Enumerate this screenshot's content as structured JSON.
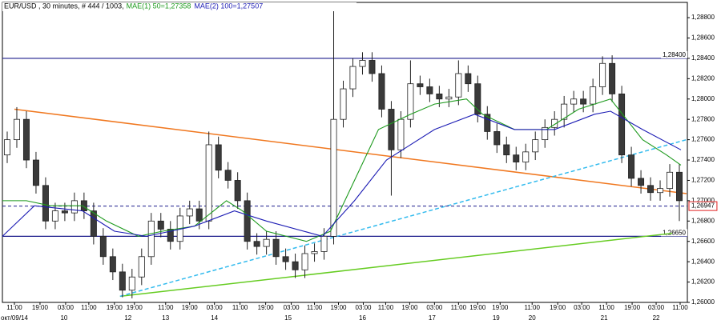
{
  "chart_data": {
    "type": "candlestick",
    "title": "EUR/USD , 30 minutes, # 444 / 1003,",
    "x": [
      1.5,
      4.5,
      7.5,
      10.5,
      13.5,
      16.5,
      19.5,
      22.5,
      25.5,
      28.5,
      31.5,
      34.5,
      37.5,
      40.5,
      43.5,
      46.5,
      49.5,
      52.5,
      55.5,
      58.5,
      61.5,
      64.5,
      67.5,
      70.5,
      73.5,
      76.5,
      79.5,
      82.5,
      85.5,
      88.5,
      91.5,
      94.5,
      97.5,
      100.5,
      103.5,
      106.5,
      109.5,
      112.5,
      115.5,
      118.5,
      121.5,
      124.5,
      127.5,
      130.5,
      133.5,
      136.5,
      139.5,
      142.5,
      145.5,
      148.5,
      151.5,
      154.5,
      157.5,
      160.5,
      163.5,
      166.5,
      169.5,
      172.5,
      175.5,
      178.5,
      181.5,
      184.5,
      187.5,
      190.5,
      193.5,
      196.5,
      199.5,
      202.5,
      205.5,
      208.5,
      211.5
    ],
    "open": [
      1.2745,
      1.276,
      1.278,
      1.274,
      1.2715,
      1.268,
      1.269,
      1.2688,
      1.27,
      1.269,
      1.2665,
      1.2645,
      1.263,
      1.2612,
      1.2625,
      1.2645,
      1.268,
      1.2672,
      1.266,
      1.2685,
      1.2692,
      1.268,
      1.2755,
      1.273,
      1.272,
      1.27,
      1.266,
      1.2655,
      1.2662,
      1.2645,
      1.264,
      1.2632,
      1.2648,
      1.265,
      1.2665,
      1.278,
      1.281,
      1.2832,
      1.2838,
      1.2825,
      1.279,
      1.275,
      1.278,
      1.2815,
      1.2812,
      1.2805,
      1.28,
      1.2802,
      1.2825,
      1.2815,
      1.2785,
      1.2768,
      1.2755,
      1.2745,
      1.2738,
      1.2748,
      1.276,
      1.2772,
      1.278,
      1.2795,
      1.28,
      1.2795,
      1.2812,
      1.2835,
      1.2805,
      1.2745,
      1.2722,
      1.2715,
      1.2708,
      1.2712,
      1.2728
    ],
    "high": [
      1.2768,
      1.2792,
      1.2788,
      1.2748,
      1.2723,
      1.2698,
      1.2698,
      1.2708,
      1.2708,
      1.2698,
      1.2673,
      1.2653,
      1.2638,
      1.2633,
      1.2653,
      1.2688,
      1.2688,
      1.268,
      1.2693,
      1.27,
      1.27,
      1.2768,
      1.2763,
      1.2738,
      1.2728,
      1.2708,
      1.2668,
      1.267,
      1.267,
      1.2653,
      1.2648,
      1.2656,
      1.2658,
      1.2673,
      1.2888,
      1.2818,
      1.284,
      1.2846,
      1.2846,
      1.2833,
      1.2798,
      1.2788,
      1.2838,
      1.2823,
      1.282,
      1.2813,
      1.281,
      1.2838,
      1.2833,
      1.2823,
      1.2793,
      1.2776,
      1.2763,
      1.2753,
      1.2756,
      1.2768,
      1.278,
      1.2788,
      1.2803,
      1.2808,
      1.2808,
      1.282,
      1.2842,
      1.2843,
      1.2813,
      1.2753,
      1.273,
      1.2723,
      1.272,
      1.2736,
      1.2736
    ],
    "low": [
      1.2737,
      1.2752,
      1.2732,
      1.2707,
      1.2672,
      1.2672,
      1.268,
      1.268,
      1.2682,
      1.2657,
      1.2637,
      1.2622,
      1.2605,
      1.2604,
      1.2617,
      1.2637,
      1.2664,
      1.2652,
      1.2652,
      1.2677,
      1.2672,
      1.2672,
      1.2722,
      1.2712,
      1.2692,
      1.2652,
      1.2647,
      1.2647,
      1.2637,
      1.2632,
      1.2624,
      1.2624,
      1.264,
      1.2642,
      1.2657,
      1.2772,
      1.2802,
      1.2824,
      1.2817,
      1.2782,
      1.2705,
      1.2742,
      1.2772,
      1.2804,
      1.2797,
      1.2792,
      1.2792,
      1.2794,
      1.2807,
      1.2777,
      1.276,
      1.2747,
      1.2737,
      1.273,
      1.273,
      1.274,
      1.2752,
      1.2764,
      1.2772,
      1.2787,
      1.2787,
      1.2787,
      1.2804,
      1.2797,
      1.2737,
      1.2714,
      1.2707,
      1.27,
      1.27,
      1.2704,
      1.268
    ],
    "close": [
      1.276,
      1.278,
      1.274,
      1.2715,
      1.268,
      1.269,
      1.2688,
      1.27,
      1.269,
      1.2665,
      1.2645,
      1.263,
      1.2612,
      1.2625,
      1.2645,
      1.268,
      1.2672,
      1.266,
      1.2685,
      1.2692,
      1.268,
      1.2755,
      1.273,
      1.272,
      1.27,
      1.266,
      1.2655,
      1.2662,
      1.2645,
      1.264,
      1.2632,
      1.2648,
      1.265,
      1.2665,
      1.278,
      1.281,
      1.2832,
      1.2838,
      1.2825,
      1.279,
      1.275,
      1.278,
      1.2815,
      1.2812,
      1.2805,
      1.28,
      1.2802,
      1.2825,
      1.2815,
      1.2785,
      1.2768,
      1.2755,
      1.2745,
      1.2738,
      1.2748,
      1.276,
      1.2772,
      1.278,
      1.2795,
      1.28,
      1.2795,
      1.2812,
      1.2835,
      1.2805,
      1.2745,
      1.2722,
      1.2715,
      1.2708,
      1.2712,
      1.2728,
      1.27
    ],
    "series": [
      {
        "name": "MAE(1) 50=1,27358",
        "color": "#1e9a1e",
        "x": [
          0,
          7.5,
          15,
          25,
          32.5,
          42.5,
          50,
          60,
          70,
          75,
          82.5,
          95,
          102.5,
          110,
          117.5,
          127.5,
          135,
          145,
          150,
          160,
          170,
          180,
          190,
          200,
          207.5,
          212
        ],
        "values": [
          1.27,
          1.27,
          1.2695,
          1.2695,
          1.268,
          1.2665,
          1.267,
          1.2675,
          1.27,
          1.269,
          1.267,
          1.266,
          1.267,
          1.272,
          1.277,
          1.2785,
          1.2795,
          1.28,
          1.2785,
          1.277,
          1.277,
          1.279,
          1.28,
          1.276,
          1.2745,
          1.2735
        ]
      },
      {
        "name": "MAE(2) 100=1,27507",
        "color": "#1c1cb4",
        "x": [
          0,
          10,
          25,
          35,
          45,
          60,
          72.5,
          82.5,
          100,
          110,
          120,
          135,
          147.5,
          160,
          172.5,
          185,
          190,
          200,
          212
        ],
        "values": [
          1.2665,
          1.2695,
          1.269,
          1.267,
          1.2665,
          1.2675,
          1.269,
          1.268,
          1.2665,
          1.27,
          1.274,
          1.277,
          1.2785,
          1.277,
          1.277,
          1.2785,
          1.2788,
          1.277,
          1.275
        ]
      }
    ],
    "trend_lines": [
      {
        "color": "#f07820",
        "dashed": false,
        "x": [
          3.75,
          213.75
        ],
        "y": [
          1.279,
          1.2707
        ]
      },
      {
        "color": "#66cc22",
        "dashed": false,
        "x": [
          36.75,
          209.25
        ],
        "y": [
          1.2606,
          1.2668
        ]
      },
      {
        "color": "#33bbee",
        "dashed": true,
        "x": [
          36.75,
          213.75
        ],
        "y": [
          1.2606,
          1.276
        ]
      }
    ],
    "levels": [
      {
        "value": 1.284,
        "label": "1,28400",
        "color": "#1c1c8c"
      },
      {
        "value": 1.2665,
        "label": "1,26650",
        "color": "#1c1c8c"
      }
    ],
    "current_price": {
      "value": 1.26947,
      "label": "1,26947",
      "color": "#e02020"
    },
    "xlim": [
      0,
      214
    ],
    "ylim": [
      1.26,
      1.2895
    ],
    "yticks": [
      {
        "value": 1.26,
        "label": "1,26000"
      },
      {
        "value": 1.262,
        "label": "1,26200"
      },
      {
        "value": 1.264,
        "label": "1,26400"
      },
      {
        "value": 1.266,
        "label": "1,26600"
      },
      {
        "value": 1.268,
        "label": "1,26800"
      },
      {
        "value": 1.27,
        "label": "1,27000"
      },
      {
        "value": 1.272,
        "label": "1,27200"
      },
      {
        "value": 1.274,
        "label": "1,27400"
      },
      {
        "value": 1.276,
        "label": "1,27600"
      },
      {
        "value": 1.278,
        "label": "1,27800"
      },
      {
        "value": 1.28,
        "label": "1,28000"
      },
      {
        "value": 1.282,
        "label": "1,28200"
      },
      {
        "value": 1.284,
        "label": "1,28400"
      },
      {
        "value": 1.286,
        "label": "1,28600"
      },
      {
        "value": 1.288,
        "label": "1,28800"
      }
    ],
    "xticks": [
      {
        "value": 3.75,
        "label": "11:00"
      },
      {
        "value": 11.75,
        "label": "19:00"
      },
      {
        "value": 19.75,
        "label": "03:00"
      },
      {
        "value": 27,
        "label": "11:00"
      },
      {
        "value": 35,
        "label": "19:00"
      },
      {
        "value": 41.25,
        "label": "19:00"
      },
      {
        "value": 51,
        "label": "11:00"
      },
      {
        "value": 58.5,
        "label": "19:00"
      },
      {
        "value": 66.25,
        "label": "03:00"
      },
      {
        "value": 74.25,
        "label": "11:00"
      },
      {
        "value": 82.25,
        "label": "19:00"
      },
      {
        "value": 90.25,
        "label": "03:00"
      },
      {
        "value": 97.5,
        "label": "11:00"
      },
      {
        "value": 105,
        "label": "19:00"
      },
      {
        "value": 112.75,
        "label": "03:00"
      },
      {
        "value": 119.75,
        "label": "11:00"
      },
      {
        "value": 127.25,
        "label": "19:00"
      },
      {
        "value": 135,
        "label": "03:00"
      },
      {
        "value": 142.5,
        "label": "11:00"
      },
      {
        "value": 148.5,
        "label": "19:00"
      },
      {
        "value": 155.5,
        "label": "19:00"
      },
      {
        "value": 165.5,
        "label": "11:00"
      },
      {
        "value": 173.5,
        "label": "19:00"
      },
      {
        "value": 181,
        "label": "03:00"
      },
      {
        "value": 188.75,
        "label": "11:00"
      },
      {
        "value": 196.75,
        "label": "19:00"
      },
      {
        "value": 204.25,
        "label": "03:00"
      },
      {
        "value": 211.75,
        "label": "11:00"
      }
    ],
    "date_ticks": [
      {
        "value": 3.75,
        "label": "окт/09/14"
      },
      {
        "value": 19.25,
        "label": "10"
      },
      {
        "value": 39.25,
        "label": "12"
      },
      {
        "value": 51,
        "label": "13"
      },
      {
        "value": 66.25,
        "label": "14"
      },
      {
        "value": 89.25,
        "label": "15"
      },
      {
        "value": 112.5,
        "label": "16"
      },
      {
        "value": 134.25,
        "label": "17"
      },
      {
        "value": 154.25,
        "label": "19"
      },
      {
        "value": 165.5,
        "label": "20"
      },
      {
        "value": 188,
        "label": "21"
      },
      {
        "value": 204.25,
        "label": "22"
      }
    ],
    "up_color": "#ffffff",
    "down_color": "#3a3a3a"
  }
}
